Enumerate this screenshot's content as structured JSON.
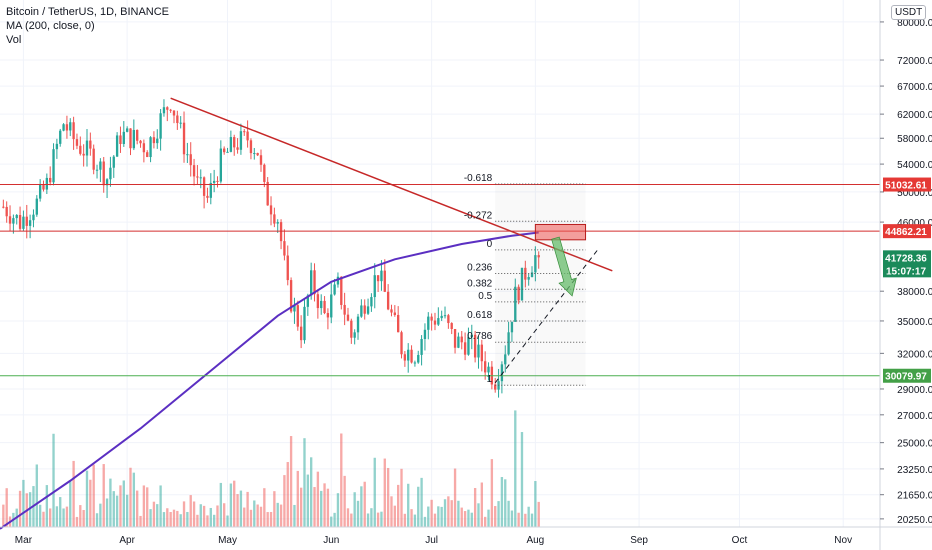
{
  "legend": {
    "title": "Bitcoin / TetherUS, 1D, BINANCE",
    "ma": "MA (200, close, 0)",
    "vol": "Vol"
  },
  "currency_button": "USDT",
  "colors": {
    "up": "#26a69a",
    "down": "#ef5350",
    "ma": "#5b2fc2",
    "resistance": "#d32f2f",
    "support": "#4caf50",
    "trend": "#c62828",
    "fib": "#555555",
    "arrow": "#66bb6a"
  },
  "chart_data": {
    "type": "candlestick",
    "title": "Bitcoin / TetherUS, 1D, BINANCE",
    "x_ticks": [
      "Mar",
      "Apr",
      "May",
      "Jun",
      "Jul",
      "Aug",
      "Sep",
      "Oct",
      "Nov"
    ],
    "x_tick_dates": [
      "2021-03-01",
      "2021-04-01",
      "2021-05-01",
      "2021-06-01",
      "2021-07-01",
      "2021-08-01",
      "2021-09-01",
      "2021-10-01",
      "2021-11-01"
    ],
    "x_range": [
      "2021-02-22",
      "2021-11-12"
    ],
    "y_scale": "log",
    "y_range": [
      19800,
      85000
    ],
    "y_ticks": [
      "80000.00",
      "72000.00",
      "67000.00",
      "62000.00",
      "58000.00",
      "54000.00",
      "50000.00",
      "46000.00",
      "38000.00",
      "35000.00",
      "32000.00",
      "29000.00",
      "27000.00",
      "25000.00",
      "23250.00",
      "21650.00",
      "20250.00"
    ],
    "price_labels": [
      {
        "text": "51032.61",
        "value": 51032.61,
        "kind": "resistance"
      },
      {
        "text": "44862.21",
        "value": 44862.21,
        "kind": "resistance"
      },
      {
        "text": "41728.36",
        "value": 41728.36,
        "kind": "last"
      },
      {
        "text": "15:07:17",
        "value": 39600,
        "kind": "countdown"
      },
      {
        "text": "30079.97",
        "value": 30079.97,
        "kind": "support"
      }
    ],
    "price_path": [
      [
        "2021-02-23",
        48000
      ],
      [
        "2021-02-28",
        46000
      ],
      [
        "2021-03-05",
        48500
      ],
      [
        "2021-03-08",
        51000
      ],
      [
        "2021-03-13",
        60500
      ],
      [
        "2021-03-17",
        57000
      ],
      [
        "2021-03-22",
        55000
      ],
      [
        "2021-03-26",
        52000
      ],
      [
        "2021-03-30",
        58500
      ],
      [
        "2021-04-03",
        58000
      ],
      [
        "2021-04-07",
        56500
      ],
      [
        "2021-04-10",
        60000
      ],
      [
        "2021-04-14",
        64500
      ],
      [
        "2021-04-18",
        57000
      ],
      [
        "2021-04-22",
        51000
      ],
      [
        "2021-04-25",
        49000
      ],
      [
        "2021-04-29",
        54500
      ],
      [
        "2021-05-03",
        57000
      ],
      [
        "2021-05-07",
        58000
      ],
      [
        "2021-05-10",
        56000
      ],
      [
        "2021-05-12",
        50000
      ],
      [
        "2021-05-16",
        46500
      ],
      [
        "2021-05-19",
        38000
      ],
      [
        "2021-05-23",
        34000
      ],
      [
        "2021-05-26",
        39000
      ],
      [
        "2021-05-30",
        35500
      ],
      [
        "2021-06-03",
        38500
      ],
      [
        "2021-06-07",
        33500
      ],
      [
        "2021-06-11",
        37000
      ],
      [
        "2021-06-15",
        40000
      ],
      [
        "2021-06-19",
        35500
      ],
      [
        "2021-06-22",
        32500
      ],
      [
        "2021-06-26",
        32000
      ],
      [
        "2021-06-30",
        35000
      ],
      [
        "2021-07-04",
        35500
      ],
      [
        "2021-07-08",
        33000
      ],
      [
        "2021-07-12",
        33000
      ],
      [
        "2021-07-16",
        31500
      ],
      [
        "2021-07-20",
        29800
      ],
      [
        "2021-07-23",
        32500
      ],
      [
        "2021-07-26",
        37500
      ],
      [
        "2021-07-29",
        40000
      ],
      [
        "2021-08-01",
        41800
      ],
      [
        "2021-08-02",
        41728
      ]
    ],
    "ma200": [
      [
        "2021-02-22",
        19700
      ],
      [
        "2021-03-15",
        22500
      ],
      [
        "2021-04-05",
        26000
      ],
      [
        "2021-04-26",
        30500
      ],
      [
        "2021-05-16",
        35500
      ],
      [
        "2021-06-01",
        39000
      ],
      [
        "2021-06-20",
        41500
      ],
      [
        "2021-07-10",
        43300
      ],
      [
        "2021-07-25",
        44300
      ],
      [
        "2021-08-02",
        44700
      ]
    ],
    "volume": {
      "max_label": "",
      "base_value": 20250
    },
    "lines": [
      {
        "kind": "horizontal",
        "value": 51032.61,
        "color": "resistance"
      },
      {
        "kind": "horizontal",
        "value": 44862.21,
        "color": "resistance"
      },
      {
        "kind": "horizontal",
        "value": 30079.97,
        "color": "support"
      },
      {
        "kind": "trend",
        "from": [
          "2021-04-14",
          64800
        ],
        "to": [
          "2021-08-24",
          40200
        ]
      }
    ],
    "fibonacci": {
      "from_date": "2021-07-20",
      "to_date": "2021-08-16",
      "levels": [
        {
          "label": "-0.618",
          "value": 51100
        },
        {
          "label": "-0.272",
          "value": 46100
        },
        {
          "label": "0",
          "value": 42600
        },
        {
          "label": "0.236",
          "value": 39900
        },
        {
          "label": "0.382",
          "value": 38200
        },
        {
          "label": "0.5",
          "value": 36900
        },
        {
          "label": "0.618",
          "value": 35000
        },
        {
          "label": "0.786",
          "value": 33000
        },
        {
          "label": "1",
          "value": 29300
        }
      ]
    },
    "zone": {
      "from_date": "2021-08-01",
      "to_date": "2021-08-16",
      "low": 43800,
      "high": 45700
    },
    "projection": {
      "from": [
        "2021-07-20",
        29500
      ],
      "to": [
        "2021-08-20",
        42800
      ]
    },
    "arrow": {
      "from": [
        "2021-08-07",
        44000
      ],
      "to": [
        "2021-08-12",
        37500
      ]
    }
  }
}
